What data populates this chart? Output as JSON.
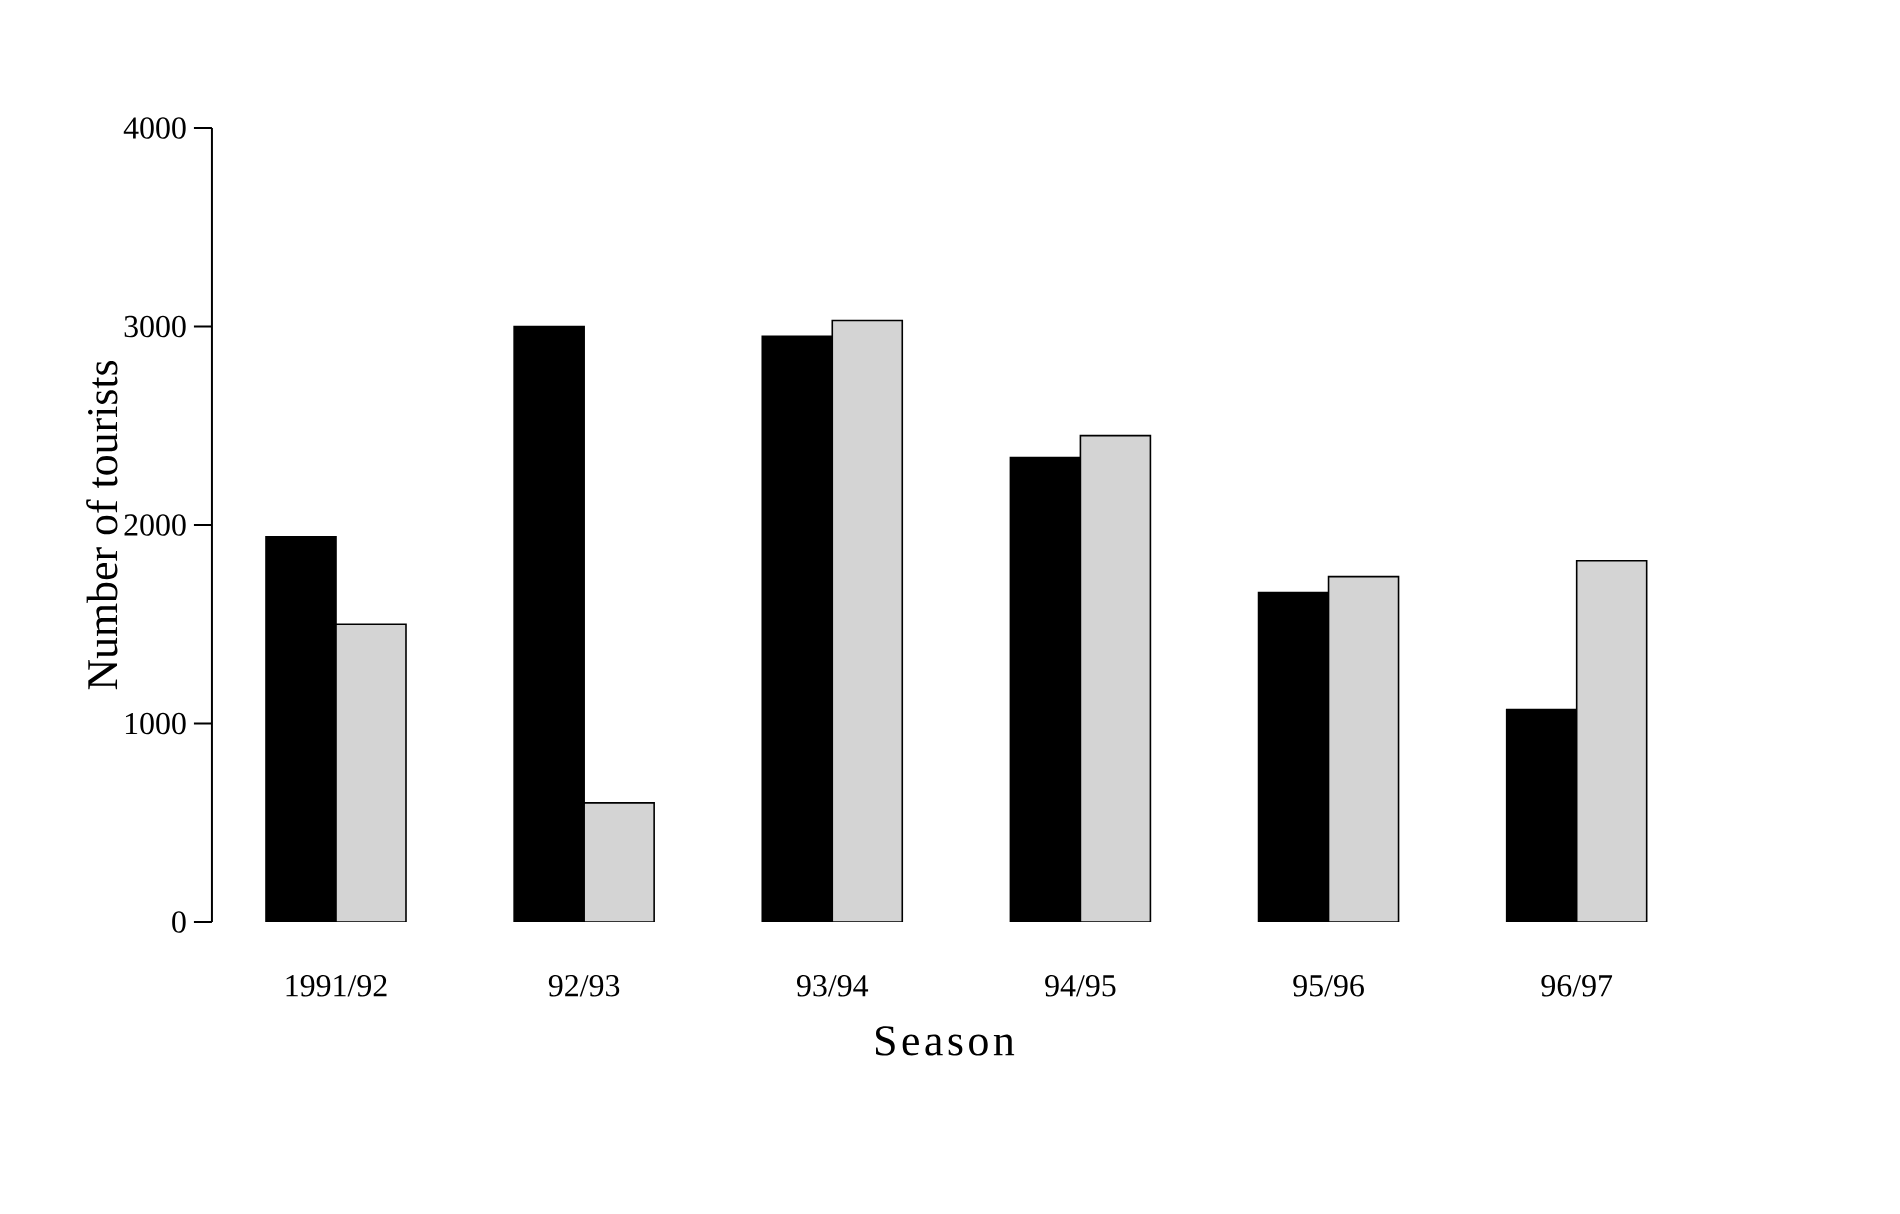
{
  "chart_data": {
    "type": "bar",
    "xlabel": "Season",
    "ylabel": "Number of tourists",
    "categories": [
      "1991/92",
      "92/93",
      "93/94",
      "94/95",
      "95/96",
      "96/97"
    ],
    "series": [
      {
        "color": "#000000",
        "values": [
          1940,
          3000,
          2950,
          2340,
          1660,
          1070
        ]
      },
      {
        "color": "#d4d4d4",
        "values": [
          1500,
          600,
          3030,
          2450,
          1740,
          1820
        ]
      }
    ],
    "ylim": [
      0,
      4000
    ],
    "yticks": [
      0,
      1000,
      2000,
      3000,
      4000
    ]
  }
}
